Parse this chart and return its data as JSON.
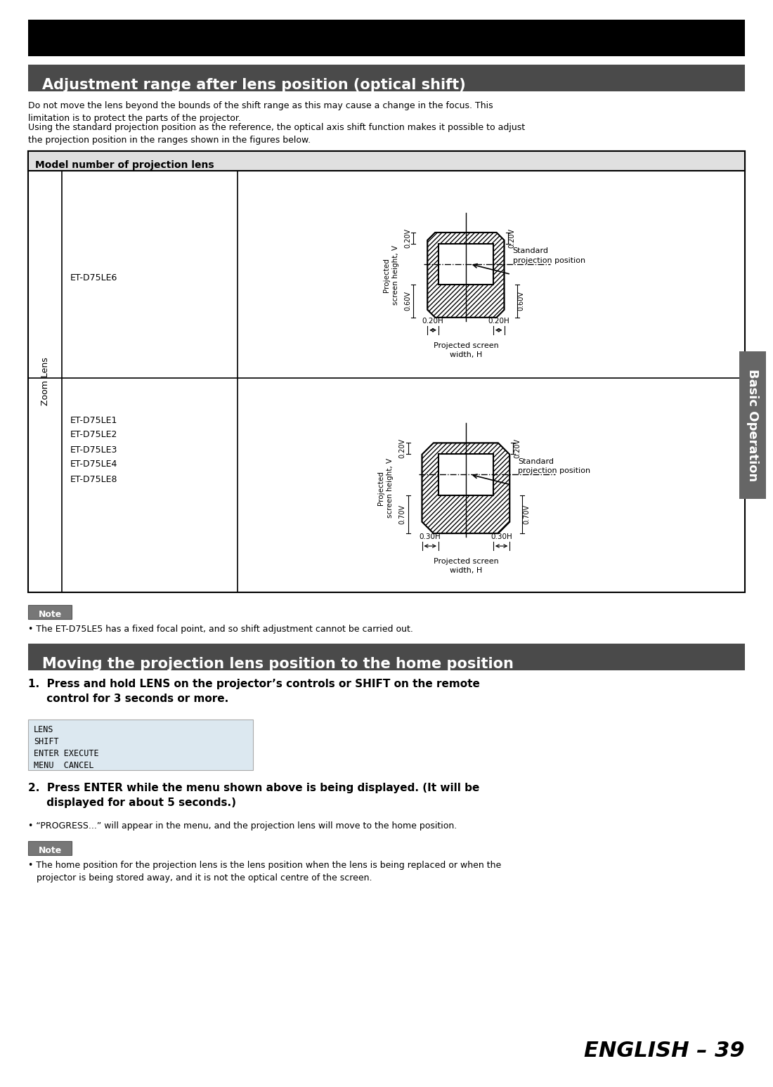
{
  "title_text": "Adjustment range after lens position (optical shift)",
  "para1": "Do not move the lens beyond the bounds of the shift range as this may cause a change in the focus. This\nlimitation is to protect the parts of the projector.",
  "para2": "Using the standard projection position as the reference, the optical axis shift function makes it possible to adjust\nthe projection position in the ranges shown in the figures below.",
  "table_header": "Model number of projection lens",
  "row1_label": "ET-D75LE6",
  "row2_labels": [
    "ET-D75LE1",
    "ET-D75LE2",
    "ET-D75LE3",
    "ET-D75LE4",
    "ET-D75LE8"
  ],
  "zoom_lens_label": "Zoom Lens",
  "note_label": "Note",
  "note_text": "• The ET-D75LE5 has a fixed focal point, and so shift adjustment cannot be carried out.",
  "section2_title": "Moving the projection lens position to the home position",
  "step1_bold": "1.  Press and hold LENS on the projector’s controls or SHIFT on the remote\n     control for 3 seconds or more.",
  "menu_items": [
    "LENS",
    "SHIFT",
    "■ EXECUTE",
    "■ CANCEL"
  ],
  "menu_prefixes": [
    "",
    "",
    "ENTER",
    "MENU"
  ],
  "step2_bold": "2.  Press ENTER while the menu shown above is being displayed. (It will be\n     displayed for about 5 seconds.)",
  "step2_bullet": "• “PROGRESS...” will appear in the menu, and the projection lens will move to the home position.",
  "note2_label": "Note",
  "note2_text": "• The home position for the projection lens is the lens position when the lens is being replaced or when the\n   projector is being stored away, and it is not the optical centre of the screen.",
  "page_text": "ENGLISH – 39",
  "sidebar_text": "Basic Operation",
  "sidebar_color": "#666666"
}
